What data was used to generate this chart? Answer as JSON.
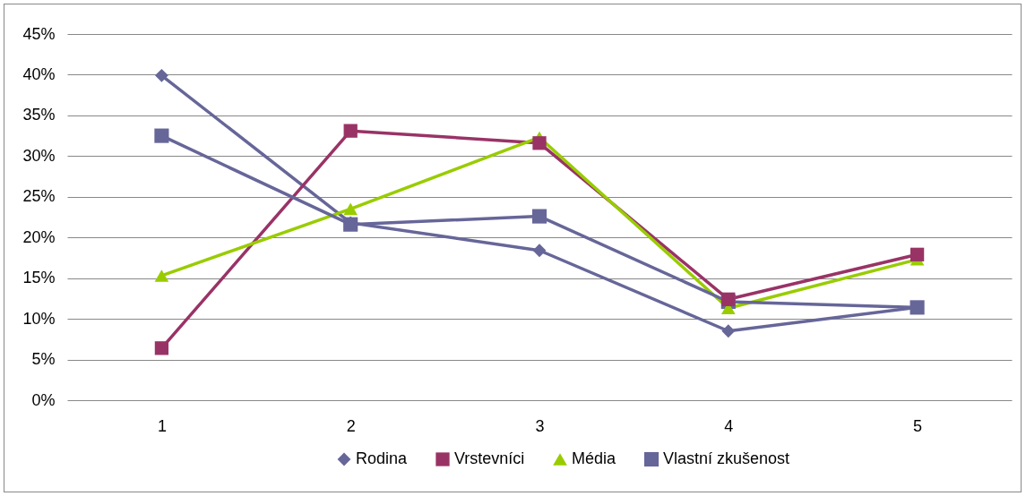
{
  "chart_data": {
    "type": "line",
    "categories": [
      "1",
      "2",
      "3",
      "4",
      "5"
    ],
    "series": [
      {
        "name": "Rodina",
        "color": "#666699",
        "marker": "diamond",
        "values": [
          39.9,
          21.8,
          18.4,
          8.5,
          11.4
        ]
      },
      {
        "name": "Vrstevníci",
        "color": "#993366",
        "marker": "square",
        "values": [
          6.4,
          33.1,
          31.6,
          12.4,
          17.9
        ]
      },
      {
        "name": "Média",
        "color": "#99cc00",
        "marker": "triangle",
        "values": [
          15.3,
          23.5,
          32.3,
          11.3,
          17.3
        ]
      },
      {
        "name": "Vlastní zkušenost",
        "color": "#666699",
        "marker": "square",
        "values": [
          32.5,
          21.6,
          22.6,
          12.1,
          11.4
        ]
      }
    ],
    "ylim": [
      0,
      45
    ],
    "yticks": [
      {
        "value": 0,
        "label": "0%"
      },
      {
        "value": 5,
        "label": "5%"
      },
      {
        "value": 10,
        "label": "10%"
      },
      {
        "value": 15,
        "label": "15%"
      },
      {
        "value": 20,
        "label": "20%"
      },
      {
        "value": 25,
        "label": "25%"
      },
      {
        "value": 30,
        "label": "30%"
      },
      {
        "value": 35,
        "label": "35%"
      },
      {
        "value": 40,
        "label": "40%"
      },
      {
        "value": 45,
        "label": "45%"
      }
    ],
    "grid": "y",
    "legend": "bottom"
  }
}
